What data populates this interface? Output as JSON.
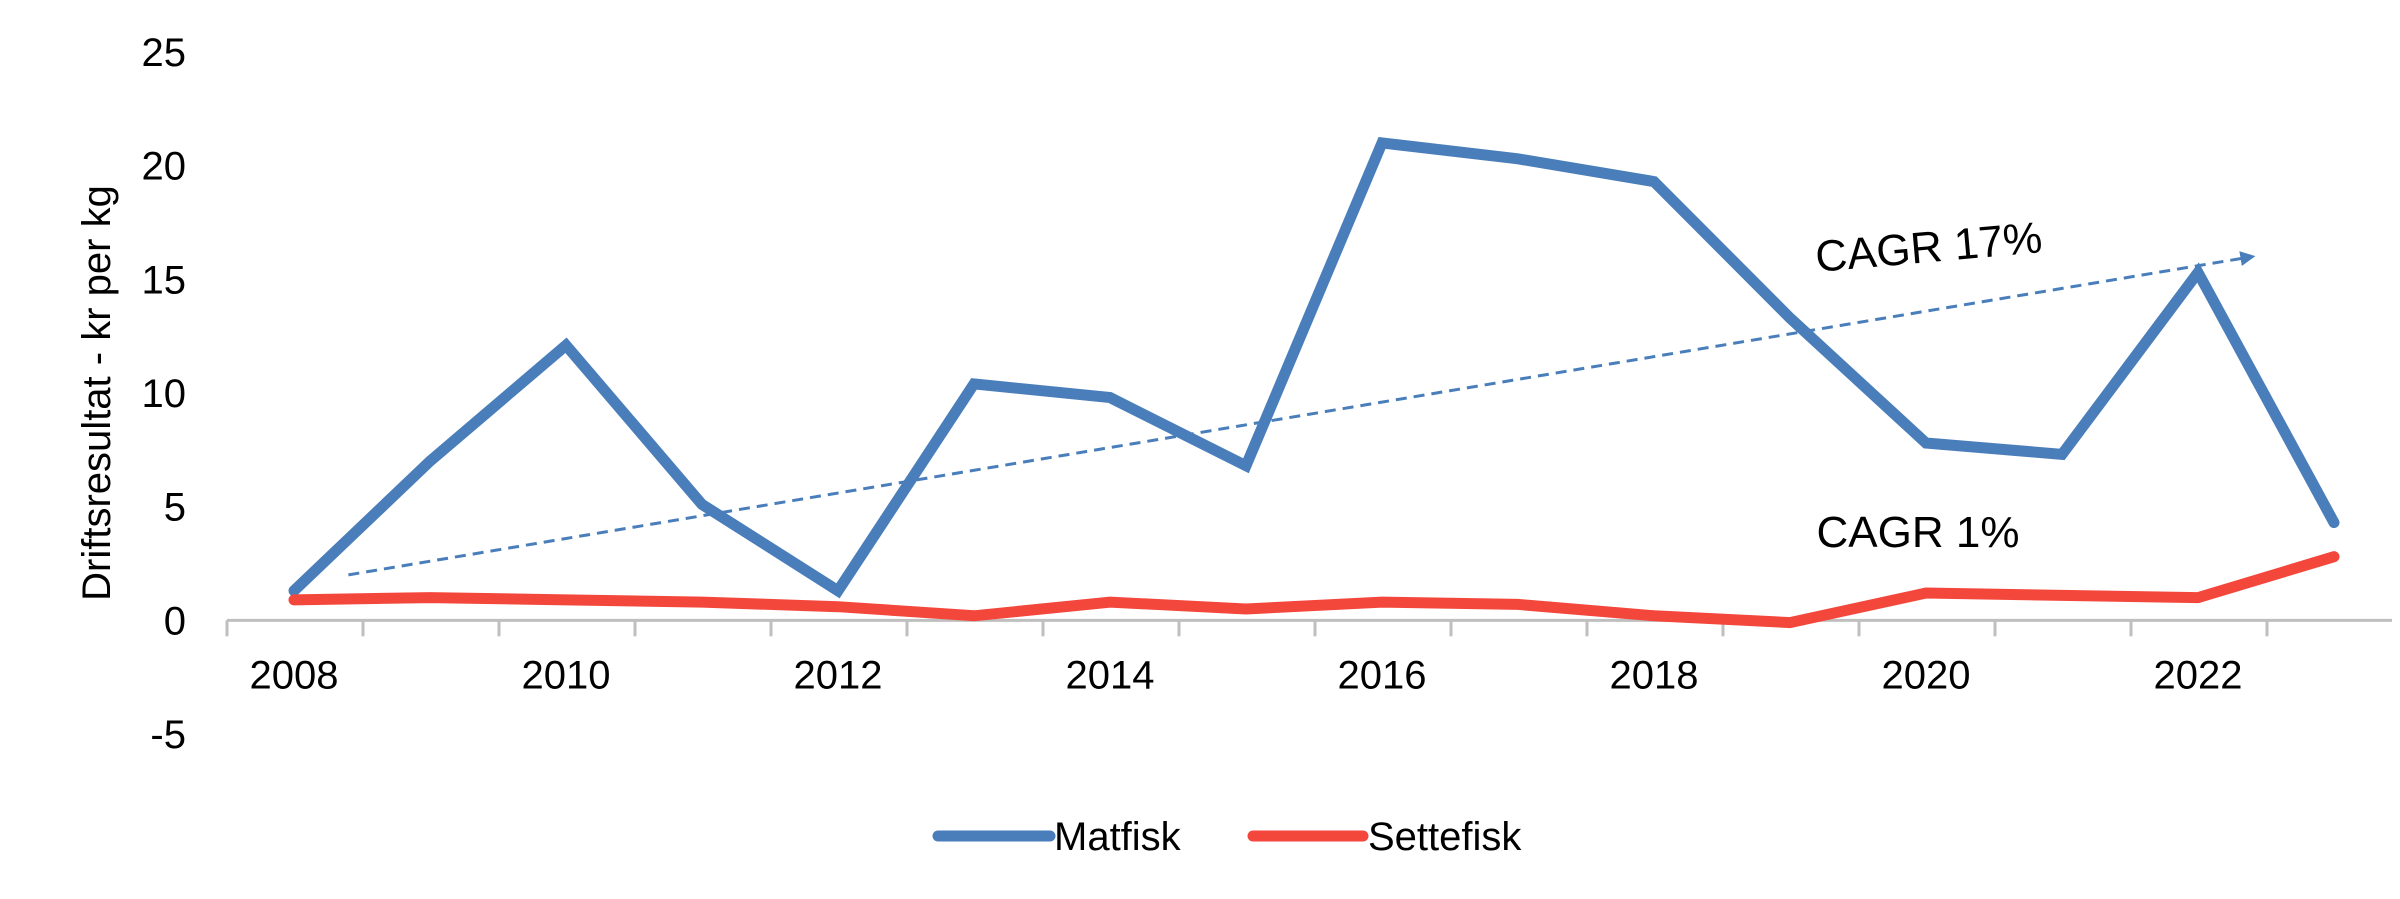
{
  "chart_data": {
    "type": "line",
    "title": "",
    "xlabel": "",
    "ylabel": "Driftsresultat - kr per kg",
    "x": [
      2008,
      2009,
      2010,
      2011,
      2012,
      2013,
      2014,
      2015,
      2016,
      2017,
      2018,
      2019,
      2020,
      2021,
      2022,
      2023
    ],
    "xticks": [
      "2008",
      "2010",
      "2012",
      "2014",
      "2016",
      "2018",
      "2020",
      "2022"
    ],
    "yticks": [
      "-5",
      "0",
      "5",
      "10",
      "15",
      "20",
      "25"
    ],
    "ylim": [
      -5,
      25
    ],
    "grid": false,
    "legend_position": "bottom",
    "series": [
      {
        "name": "Matfisk",
        "color": "#4A7EBB",
        "values": [
          1.3,
          7.0,
          12.1,
          5.1,
          1.3,
          10.4,
          9.8,
          6.8,
          21.0,
          20.3,
          19.3,
          13.3,
          7.8,
          7.3,
          15.3,
          4.3
        ]
      },
      {
        "name": "Settefisk",
        "color": "#F4473C",
        "values": [
          0.9,
          1.0,
          0.9,
          0.8,
          0.6,
          0.2,
          0.8,
          0.5,
          0.8,
          0.7,
          0.2,
          -0.1,
          1.2,
          1.1,
          1.0,
          2.8
        ]
      }
    ],
    "annotations": [
      {
        "id": "cagr-matfisk",
        "text": "CAGR 17%",
        "color": "#000000"
      },
      {
        "id": "cagr-settefisk",
        "text": "CAGR 1%",
        "color": "#000000"
      }
    ],
    "trendline": {
      "series": "Matfisk",
      "style": "dashed",
      "color": "#4A7EBB",
      "from": {
        "x": 2008.4,
        "y": 2.0
      },
      "to": {
        "x": 2022.4,
        "y": 16.0
      }
    }
  }
}
